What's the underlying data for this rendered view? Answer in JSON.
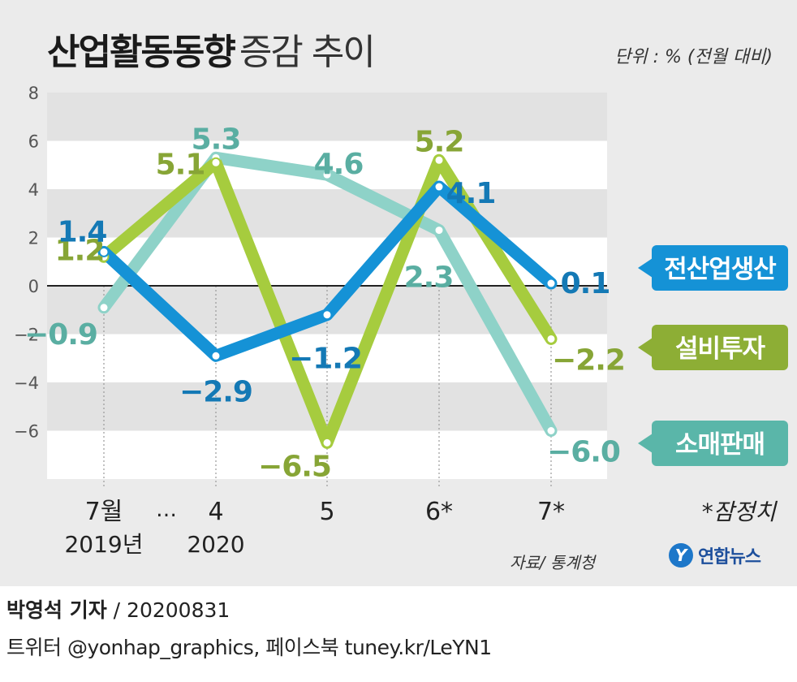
{
  "header": {
    "title_bold": "산업활동동향",
    "title_light": "증감 추이",
    "unit": "단위 : % (전월 대비)"
  },
  "footer": {
    "source": "자료/ 통계청",
    "logo_mark": "Y",
    "logo_text": "연합뉴스",
    "reporter": "박영석 기자",
    "date": "/ 20200831",
    "social": "트위터 @yonhap_graphics, 페이스북 tuney.kr/LeYN1"
  },
  "chart_data": {
    "type": "line",
    "title": "산업활동동향 증감 추이",
    "ylabel": "%",
    "ylim": [
      -8,
      8
    ],
    "yticks": [
      8,
      6,
      4,
      2,
      0,
      -2,
      -4,
      -6
    ],
    "ytick_labels": [
      "8",
      "6",
      "4",
      "2",
      "0",
      "−2",
      "−4",
      "−6"
    ],
    "categories": [
      {
        "top": "7월",
        "bottom": "2019년"
      },
      {
        "top": "4",
        "bottom": "2020"
      },
      {
        "top": "5",
        "bottom": ""
      },
      {
        "top": "6*",
        "bottom": ""
      },
      {
        "top": "7*",
        "bottom": ""
      }
    ],
    "ellipsis": "…",
    "note": "*잠정치",
    "series": [
      {
        "name": "소매판매",
        "color": "#8ed2c8",
        "label_color": "#5aaea2",
        "badge_color": "#5ab6a9",
        "values": [
          -0.9,
          5.3,
          4.6,
          2.3,
          -6.0
        ],
        "labels": [
          "−0.9",
          "5.3",
          "4.6",
          "2.3",
          "−6.0"
        ]
      },
      {
        "name": "설비투자",
        "color": "#a6cc3e",
        "label_color": "#87a536",
        "badge_color": "#8dae35",
        "values": [
          1.2,
          5.1,
          -6.5,
          5.2,
          -2.2
        ],
        "labels": [
          "1.2",
          "5.1",
          "−6.5",
          "5.2",
          "−2.2"
        ]
      },
      {
        "name": "전산업생산",
        "color": "#1592d6",
        "label_color": "#1479b5",
        "badge_color": "#1592d6",
        "values": [
          1.4,
          -2.9,
          -1.2,
          4.1,
          0.1
        ],
        "labels": [
          "1.4",
          "−2.9",
          "−1.2",
          "4.1",
          "0.1"
        ]
      }
    ]
  }
}
